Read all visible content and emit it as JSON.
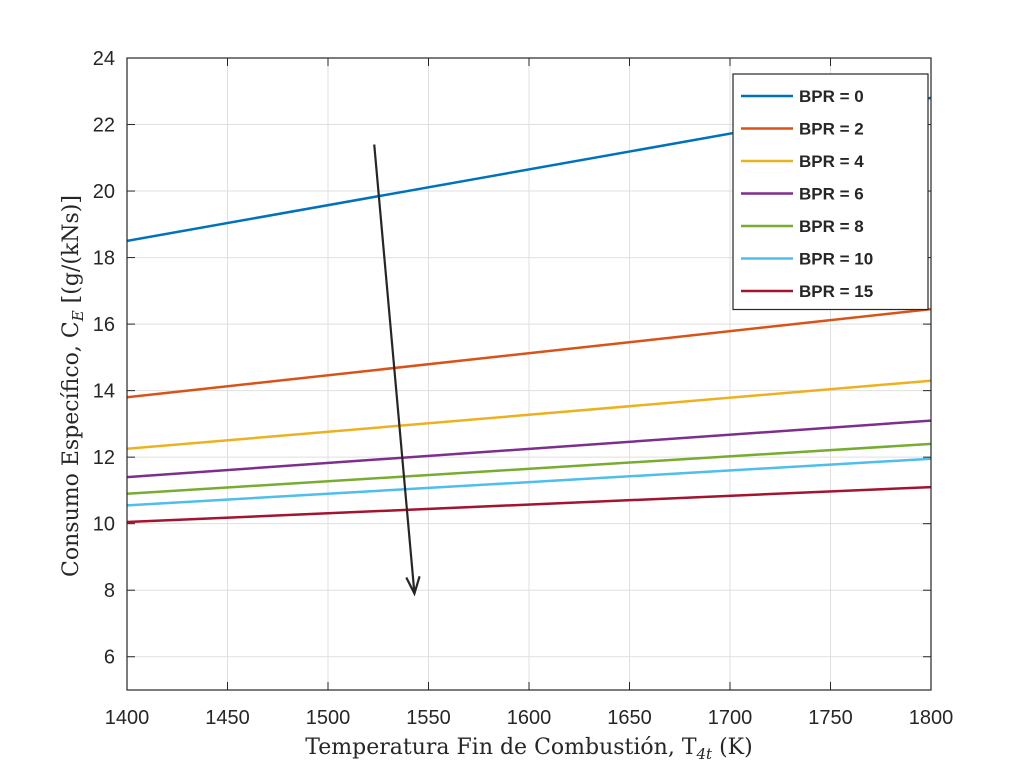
{
  "chart_data": {
    "type": "line",
    "title": "",
    "xlabel": "Temperatura Fin de Combustión, T",
    "xlabel_sub": "4t",
    "xlabel_suffix": " (K)",
    "ylabel": "Consumo Específico, C",
    "ylabel_sub": "E",
    "ylabel_suffix": " [(g/(kNs)]",
    "xlim": [
      1400,
      1800
    ],
    "ylim": [
      5,
      24
    ],
    "xticks": [
      1400,
      1450,
      1500,
      1550,
      1600,
      1650,
      1700,
      1750,
      1800
    ],
    "yticks": [
      6,
      8,
      10,
      12,
      14,
      16,
      18,
      20,
      22,
      24
    ],
    "grid": true,
    "legend_position": "top-right",
    "series": [
      {
        "name": "BPR = 0",
        "color": "#0072BD",
        "x": [
          1400,
          1800
        ],
        "y": [
          18.5,
          22.8
        ]
      },
      {
        "name": "BPR = 2",
        "color": "#D95319",
        "x": [
          1400,
          1800
        ],
        "y": [
          13.8,
          16.45
        ]
      },
      {
        "name": "BPR = 4",
        "color": "#EDB120",
        "x": [
          1400,
          1800
        ],
        "y": [
          12.25,
          14.3
        ]
      },
      {
        "name": "BPR = 6",
        "color": "#7E2F8E",
        "x": [
          1400,
          1800
        ],
        "y": [
          11.4,
          13.1
        ]
      },
      {
        "name": "BPR = 8",
        "color": "#77AC30",
        "x": [
          1400,
          1800
        ],
        "y": [
          10.9,
          12.4
        ]
      },
      {
        "name": "BPR = 10",
        "color": "#4DBEEE",
        "x": [
          1400,
          1800
        ],
        "y": [
          10.55,
          11.95
        ]
      },
      {
        "name": "BPR = 15",
        "color": "#A2142F",
        "x": [
          1400,
          1800
        ],
        "y": [
          10.05,
          11.1
        ]
      }
    ],
    "annotations": [
      {
        "type": "arrow",
        "color": "#262626",
        "from": [
          1523,
          21.4
        ],
        "to": [
          1543,
          7.9
        ]
      }
    ]
  }
}
